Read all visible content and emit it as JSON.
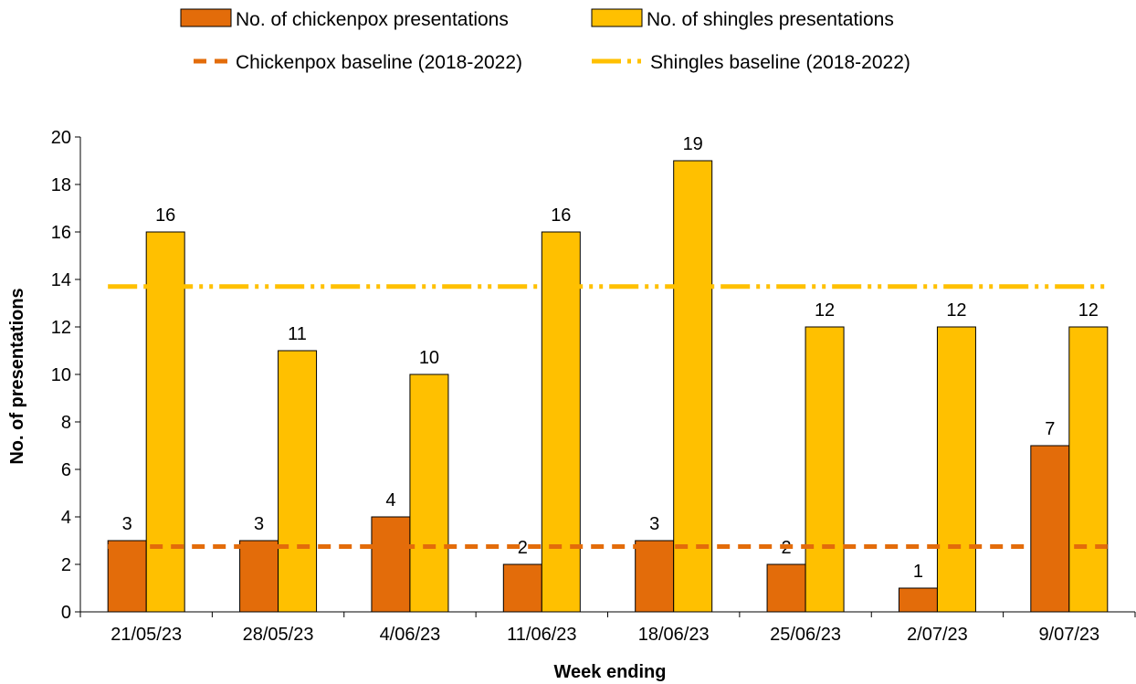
{
  "chart_data": {
    "type": "bar",
    "categories": [
      "21/05/23",
      "28/05/23",
      "4/06/23",
      "11/06/23",
      "18/06/23",
      "25/06/23",
      "2/07/23",
      "9/07/23"
    ],
    "series": [
      {
        "name": "No. of chickenpox presentations",
        "type": "bar",
        "color": "#E36C0A",
        "values": [
          3,
          3,
          4,
          2,
          3,
          2,
          1,
          7
        ]
      },
      {
        "name": "No. of shingles presentations",
        "type": "bar",
        "color": "#FFC000",
        "values": [
          16,
          11,
          10,
          16,
          19,
          12,
          12,
          12
        ]
      }
    ],
    "baselines": [
      {
        "name": "Chickenpox baseline (2018-2022)",
        "type": "line",
        "style": "dashed",
        "color": "#E36C0A",
        "value": 2.75
      },
      {
        "name": "Shingles baseline (2018-2022)",
        "type": "line",
        "style": "long-dash-dot-dot",
        "color": "#FFC000",
        "value": 13.7
      }
    ],
    "xlabel": "Week ending",
    "ylabel": "No. of presentations",
    "ylim": [
      0,
      20
    ],
    "yticks": [
      0,
      2,
      4,
      6,
      8,
      10,
      12,
      14,
      16,
      18,
      20
    ],
    "grid": false,
    "legend_position": "top"
  }
}
